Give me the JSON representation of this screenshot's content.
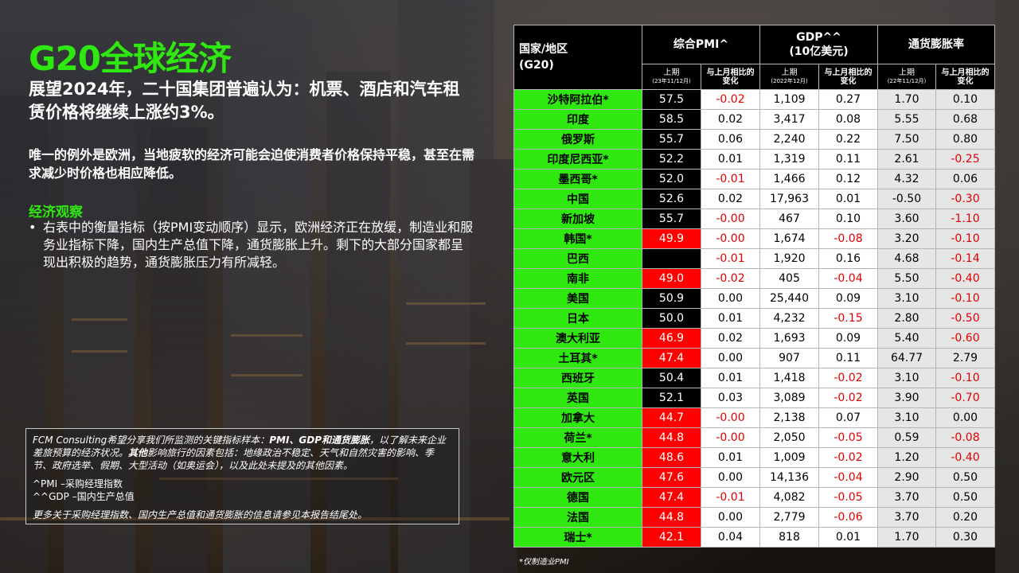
{
  "title": "G20全球经济",
  "headline": "展望2024年，二十国集团普遍认为：机票、酒店和汽车租赁价格将继续上涨约3%。",
  "paragraph": "唯一的例外是欧洲，当地疲软的经济可能会迫使消费者价格保持平稳，甚至在需求减少时价格也相应降低。",
  "observation": {
    "heading": "经济观察",
    "bullet": "•",
    "text": "右表中的衡量指标（按PMI变动顺序）显示，欧洲经济正在放缓，制造业和服务业指标下降，国内生产总值下降，通货膨胀上升。剩下的大部分国家都呈现出积极的趋势，通货膨胀压力有所减轻。"
  },
  "note": {
    "intro_a": "FCM Consulting希望分享我们所监测的关键指标样本：",
    "intro_bold": "PMI、GDP和通货膨胀",
    "intro_b": "，以了解未来企业差旅预算的经济状况。",
    "other_bold": "其他",
    "other_text": "影响旅行的因素包括：地缘政治不稳定、天气和自然灾害的影响、季节、政府选举、假期、大型活动（如奥运会），以及此处未提及的其他因素。",
    "def_pmi": "^PMI –采购经理指数",
    "def_gdp": "^^GDP –国内生产总值",
    "more": "更多关于采购经理指数、国内生产总值和通货膨胀的信息请参见本报告结尾处。"
  },
  "footnote": "*仅制造业PMI",
  "colors": {
    "accent_green": "#2ee80f",
    "negative_red": "#e00000",
    "pmi_low_red": "#ff0000"
  },
  "table": {
    "header_country": "国家/地区",
    "header_country_sub": "(G20)",
    "group_pmi": "综合PMI^",
    "group_gdp_line1": "GDP^^",
    "group_gdp_line2": "(10亿美元)",
    "group_inflation": "通货膨胀率",
    "sub_prev": "上期",
    "sub_prev_pmi_date": "(23年11/12月)",
    "sub_prev_gdp_date": "(2022年12月)",
    "sub_prev_inf_date": "(22年11/12月)",
    "sub_change_line1": "与上月相比的",
    "sub_change_line2": "变化",
    "rows": [
      {
        "country": "沙特阿拉伯*",
        "pmi": "57.5",
        "pmi_chg": "-0.02",
        "gdp": "1,109",
        "gdp_chg": "0.27",
        "inf": "1.70",
        "inf_chg": "0.10",
        "pmi_state": "hi"
      },
      {
        "country": "印度",
        "pmi": "58.5",
        "pmi_chg": "0.02",
        "gdp": "3,417",
        "gdp_chg": "0.08",
        "inf": "5.55",
        "inf_chg": "0.68",
        "pmi_state": "hi"
      },
      {
        "country": "俄罗斯",
        "pmi": "55.7",
        "pmi_chg": "0.06",
        "gdp": "2,240",
        "gdp_chg": "0.22",
        "inf": "7.50",
        "inf_chg": "0.80",
        "pmi_state": "hi"
      },
      {
        "country": "印度尼西亚*",
        "pmi": "52.2",
        "pmi_chg": "0.01",
        "gdp": "1,319",
        "gdp_chg": "0.11",
        "inf": "2.61",
        "inf_chg": "-0.25",
        "pmi_state": "hi"
      },
      {
        "country": "墨西哥*",
        "pmi": "52.0",
        "pmi_chg": "-0.01",
        "gdp": "1,466",
        "gdp_chg": "0.12",
        "inf": "4.32",
        "inf_chg": "0.06",
        "pmi_state": "hi"
      },
      {
        "country": "中国",
        "pmi": "52.6",
        "pmi_chg": "0.02",
        "gdp": "17,963",
        "gdp_chg": "0.01",
        "inf": "-0.50",
        "inf_chg": "-0.30",
        "pmi_state": "hi"
      },
      {
        "country": "新加坡",
        "pmi": "55.7",
        "pmi_chg": "-0.00",
        "gdp": "467",
        "gdp_chg": "0.10",
        "inf": "3.60",
        "inf_chg": "-1.10",
        "pmi_state": "hi"
      },
      {
        "country": "韩国*",
        "pmi": "49.9",
        "pmi_chg": "-0.00",
        "gdp": "1,674",
        "gdp_chg": "-0.08",
        "inf": "3.20",
        "inf_chg": "-0.10",
        "pmi_state": "lo"
      },
      {
        "country": "巴西",
        "pmi": "",
        "pmi_chg": "-0.01",
        "gdp": "1,920",
        "gdp_chg": "0.16",
        "inf": "4.68",
        "inf_chg": "-0.14",
        "pmi_state": "na"
      },
      {
        "country": "南非",
        "pmi": "49.0",
        "pmi_chg": "-0.02",
        "gdp": "405",
        "gdp_chg": "-0.04",
        "inf": "5.50",
        "inf_chg": "-0.40",
        "pmi_state": "lo"
      },
      {
        "country": "美国",
        "pmi": "50.9",
        "pmi_chg": "0.00",
        "gdp": "25,440",
        "gdp_chg": "0.09",
        "inf": "3.10",
        "inf_chg": "-0.10",
        "pmi_state": "hi"
      },
      {
        "country": "日本",
        "pmi": "50.0",
        "pmi_chg": "0.01",
        "gdp": "4,232",
        "gdp_chg": "-0.15",
        "inf": "2.80",
        "inf_chg": "-0.50",
        "pmi_state": "hi"
      },
      {
        "country": "澳大利亚",
        "pmi": "46.9",
        "pmi_chg": "0.02",
        "gdp": "1,693",
        "gdp_chg": "0.09",
        "inf": "5.40",
        "inf_chg": "-0.60",
        "pmi_state": "lo"
      },
      {
        "country": "土耳其*",
        "pmi": "47.4",
        "pmi_chg": "0.00",
        "gdp": "907",
        "gdp_chg": "0.11",
        "inf": "64.77",
        "inf_chg": "2.79",
        "pmi_state": "lo"
      },
      {
        "country": "西班牙",
        "pmi": "50.4",
        "pmi_chg": "0.01",
        "gdp": "1,418",
        "gdp_chg": "-0.02",
        "inf": "3.10",
        "inf_chg": "-0.10",
        "pmi_state": "hi"
      },
      {
        "country": "英国",
        "pmi": "52.1",
        "pmi_chg": "0.03",
        "gdp": "3,089",
        "gdp_chg": "-0.02",
        "inf": "3.90",
        "inf_chg": "-0.70",
        "pmi_state": "hi"
      },
      {
        "country": "加拿大",
        "pmi": "44.7",
        "pmi_chg": "-0.00",
        "gdp": "2,138",
        "gdp_chg": "0.07",
        "inf": "3.10",
        "inf_chg": "0.00",
        "pmi_state": "lo"
      },
      {
        "country": "荷兰*",
        "pmi": "44.8",
        "pmi_chg": "-0.00",
        "gdp": "2,050",
        "gdp_chg": "-0.05",
        "inf": "0.59",
        "inf_chg": "-0.08",
        "pmi_state": "lo"
      },
      {
        "country": "意大利",
        "pmi": "48.6",
        "pmi_chg": "0.01",
        "gdp": "1,009",
        "gdp_chg": "-0.02",
        "inf": "1.20",
        "inf_chg": "-0.40",
        "pmi_state": "lo"
      },
      {
        "country": "欧元区",
        "pmi": "47.6",
        "pmi_chg": "0.00",
        "gdp": "14,136",
        "gdp_chg": "-0.04",
        "inf": "2.90",
        "inf_chg": "0.50",
        "pmi_state": "lo"
      },
      {
        "country": "德国",
        "pmi": "47.4",
        "pmi_chg": "-0.01",
        "gdp": "4,082",
        "gdp_chg": "-0.05",
        "inf": "3.70",
        "inf_chg": "0.50",
        "pmi_state": "lo"
      },
      {
        "country": "法国",
        "pmi": "44.8",
        "pmi_chg": "0.00",
        "gdp": "2,779",
        "gdp_chg": "-0.06",
        "inf": "3.70",
        "inf_chg": "0.20",
        "pmi_state": "lo"
      },
      {
        "country": "瑞士*",
        "pmi": "42.1",
        "pmi_chg": "0.04",
        "gdp": "818",
        "gdp_chg": "0.01",
        "inf": "1.70",
        "inf_chg": "0.30",
        "pmi_state": "lo"
      }
    ]
  }
}
